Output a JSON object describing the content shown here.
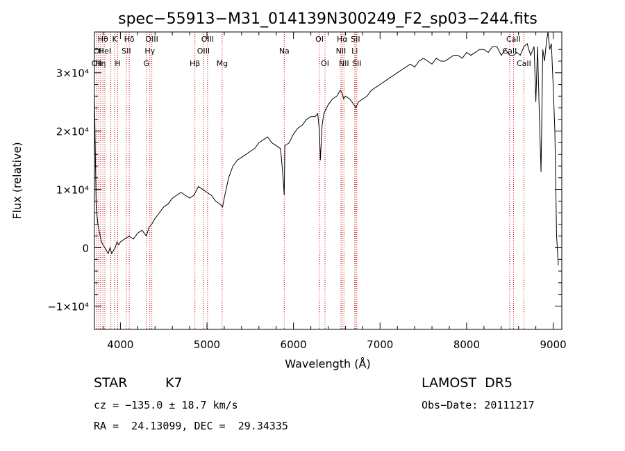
{
  "chart_data": {
    "type": "line",
    "title": "spec−55913−M31_014139N300249_F2_sp03−244.fits",
    "xlabel": "Wavelength (Å)",
    "ylabel": "Flux (relative)",
    "xlim": [
      3700,
      9100
    ],
    "ylim": [
      -14000,
      37000
    ],
    "xticks": [
      {
        "value": 4000,
        "label": "4000"
      },
      {
        "value": 5000,
        "label": "5000"
      },
      {
        "value": 6000,
        "label": "6000"
      },
      {
        "value": 7000,
        "label": "7000"
      },
      {
        "value": 8000,
        "label": "8000"
      },
      {
        "value": 9000,
        "label": "9000"
      }
    ],
    "yticks": [
      {
        "value": -10000,
        "label": "−1×10⁴"
      },
      {
        "value": 0,
        "label": "0"
      },
      {
        "value": 10000,
        "label": "1×10⁴"
      },
      {
        "value": 20000,
        "label": "2×10⁴"
      },
      {
        "value": 30000,
        "label": "3×10⁴"
      }
    ],
    "series": [
      {
        "x": [
          3700,
          3720,
          3740,
          3760,
          3780,
          3800,
          3820,
          3840,
          3860,
          3880,
          3900,
          3920,
          3940,
          3960,
          3980,
          4000,
          4050,
          4100,
          4150,
          4200,
          4250,
          4300,
          4330,
          4360,
          4400,
          4450,
          4500,
          4550,
          4600,
          4650,
          4700,
          4750,
          4800,
          4850,
          4900,
          4950,
          5000,
          5050,
          5100,
          5150,
          5180,
          5200,
          5250,
          5300,
          5350,
          5400,
          5450,
          5500,
          5550,
          5600,
          5650,
          5700,
          5750,
          5800,
          5850,
          5880,
          5893,
          5900,
          5950,
          6000,
          6050,
          6100,
          6150,
          6200,
          6250,
          6280,
          6300,
          6310,
          6330,
          6350,
          6400,
          6450,
          6500,
          6540,
          6563,
          6580,
          6600,
          6650,
          6700,
          6720,
          6750,
          6800,
          6850,
          6900,
          6950,
          7000,
          7050,
          7100,
          7150,
          7200,
          7250,
          7300,
          7350,
          7400,
          7450,
          7500,
          7550,
          7600,
          7650,
          7700,
          7750,
          7800,
          7850,
          7900,
          7950,
          8000,
          8050,
          8100,
          8150,
          8200,
          8250,
          8300,
          8350,
          8400,
          8450,
          8498,
          8542,
          8580,
          8620,
          8662,
          8700,
          8740,
          8780,
          8800,
          8820,
          8840,
          8860,
          8880,
          8900,
          8920,
          8940,
          8960,
          8980,
          9000,
          9020,
          9040,
          9060
        ],
        "y": [
          26000,
          7000,
          4000,
          2500,
          1000,
          500,
          0,
          -500,
          -1000,
          0,
          -1000,
          -500,
          0,
          1000,
          500,
          1000,
          1500,
          2000,
          1500,
          2500,
          3000,
          2000,
          3500,
          4000,
          5000,
          6000,
          7000,
          7500,
          8500,
          9000,
          9500,
          9000,
          8500,
          9000,
          10500,
          10000,
          9500,
          9000,
          8000,
          7500,
          7000,
          8500,
          12000,
          14000,
          15000,
          15500,
          16000,
          16500,
          17000,
          18000,
          18500,
          19000,
          18000,
          17500,
          17000,
          12000,
          9000,
          17500,
          18000,
          19500,
          20500,
          21000,
          22000,
          22500,
          22500,
          23000,
          20000,
          15000,
          21000,
          23000,
          24500,
          25500,
          26000,
          27000,
          26500,
          25500,
          26000,
          25500,
          24500,
          24000,
          25000,
          25500,
          26000,
          27000,
          27500,
          28000,
          28500,
          29000,
          29500,
          30000,
          30500,
          31000,
          31500,
          31000,
          32000,
          32500,
          32000,
          31500,
          32500,
          32000,
          32000,
          32500,
          33000,
          33000,
          32500,
          33500,
          33000,
          33500,
          34000,
          34000,
          33500,
          34500,
          34500,
          33000,
          34000,
          33000,
          33000,
          33500,
          33000,
          34500,
          35000,
          33000,
          34500,
          25000,
          34500,
          23000,
          13000,
          34000,
          32000,
          35000,
          37000,
          34000,
          35000,
          28000,
          20000,
          2000,
          -3000
        ]
      }
    ],
    "emission_lines": [
      {
        "wavelength": 3727,
        "labels": [
          {
            "text": "OII",
            "row": 3
          }
        ]
      },
      {
        "wavelength": 3750,
        "labels": [
          {
            "text": "OII",
            "row": 2
          }
        ]
      },
      {
        "wavelength": 3771,
        "labels": [
          {
            "text": "Hη",
            "row": 3
          }
        ]
      },
      {
        "wavelength": 3798,
        "labels": [
          {
            "text": "Hθ",
            "row": 1
          }
        ]
      },
      {
        "wavelength": 3820,
        "labels": [
          {
            "text": "HeI",
            "row": 2
          }
        ]
      },
      {
        "wavelength": 3889,
        "labels": [
          {
            "text": "",
            "row": 1
          }
        ]
      },
      {
        "wavelength": 3934,
        "labels": [
          {
            "text": "K",
            "row": 1
          }
        ]
      },
      {
        "wavelength": 3969,
        "labels": [
          {
            "text": "H",
            "row": 3
          }
        ]
      },
      {
        "wavelength": 4068,
        "labels": [
          {
            "text": "SII",
            "row": 2
          }
        ]
      },
      {
        "wavelength": 4102,
        "labels": [
          {
            "text": "Hδ",
            "row": 1
          }
        ]
      },
      {
        "wavelength": 4300,
        "labels": [
          {
            "text": "G",
            "row": 3
          }
        ]
      },
      {
        "wavelength": 4340,
        "labels": [
          {
            "text": "Hγ",
            "row": 2
          }
        ]
      },
      {
        "wavelength": 4363,
        "labels": [
          {
            "text": "OIII",
            "row": 1
          }
        ]
      },
      {
        "wavelength": 4861,
        "labels": [
          {
            "text": "Hβ",
            "row": 3
          }
        ]
      },
      {
        "wavelength": 4959,
        "labels": [
          {
            "text": "OIII",
            "row": 2
          }
        ]
      },
      {
        "wavelength": 5007,
        "labels": [
          {
            "text": "OIII",
            "row": 1
          }
        ]
      },
      {
        "wavelength": 5175,
        "labels": [
          {
            "text": "Mg",
            "row": 3
          }
        ]
      },
      {
        "wavelength": 5893,
        "labels": [
          {
            "text": "Na",
            "row": 2
          }
        ]
      },
      {
        "wavelength": 6300,
        "labels": [
          {
            "text": "OI",
            "row": 1
          }
        ]
      },
      {
        "wavelength": 6364,
        "labels": [
          {
            "text": "OI",
            "row": 3
          }
        ]
      },
      {
        "wavelength": 6548,
        "labels": [
          {
            "text": "NII",
            "row": 2
          }
        ]
      },
      {
        "wavelength": 6563,
        "labels": [
          {
            "text": "Hα",
            "row": 1
          }
        ]
      },
      {
        "wavelength": 6583,
        "labels": [
          {
            "text": "NII",
            "row": 3
          }
        ]
      },
      {
        "wavelength": 6707,
        "labels": [
          {
            "text": "Li",
            "row": 2
          }
        ]
      },
      {
        "wavelength": 6716,
        "labels": [
          {
            "text": "SII",
            "row": 1
          }
        ]
      },
      {
        "wavelength": 6731,
        "labels": [
          {
            "text": "SII",
            "row": 3
          }
        ]
      },
      {
        "wavelength": 8498,
        "labels": [
          {
            "text": "CaII",
            "row": 2
          }
        ]
      },
      {
        "wavelength": 8542,
        "labels": [
          {
            "text": "CaII",
            "row": 1
          }
        ]
      },
      {
        "wavelength": 8662,
        "labels": [
          {
            "text": "CaII",
            "row": 3
          }
        ]
      }
    ],
    "colors": {
      "spectrum": "#000000",
      "lines": "#cc0000",
      "axes": "#000000"
    }
  },
  "info": {
    "object_class": "STAR",
    "subclass": "K7",
    "survey": "LAMOST  DR5",
    "velocity": "cz = −135.0 ± 18.7 km/s",
    "obs_date": "Obs−Date: 20111217",
    "coords": "RA =  24.13099, DEC =  29.34335"
  }
}
